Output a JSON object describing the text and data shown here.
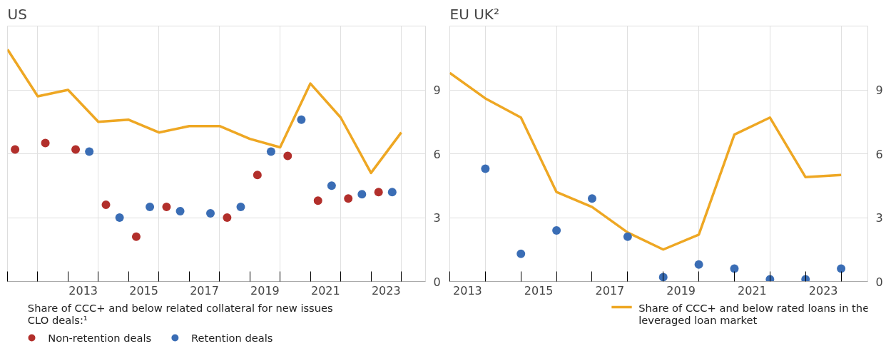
{
  "chart_data": [
    {
      "type": "line",
      "title": "US",
      "legend_title": "Share of CCC+ and below related collateral for new issues CLO deals:¹",
      "legend": "bottom",
      "grid": true,
      "marker": "none",
      "xlim": [
        2011,
        2024.8
      ],
      "ylim": [
        0,
        12
      ],
      "yticks": [
        0,
        3,
        6,
        9
      ],
      "xticks": [
        {
          "value": 2011,
          "label": null
        },
        {
          "value": 2012,
          "label": null
        },
        {
          "value": 2013,
          "label": null
        },
        {
          "value": 2014,
          "label": null
        },
        {
          "value": 2015,
          "label": null
        },
        {
          "value": 2016,
          "label": null
        },
        {
          "value": 2017,
          "label": null
        },
        {
          "value": 2018,
          "label": null
        },
        {
          "value": 2019,
          "label": null
        },
        {
          "value": 2020,
          "label": null
        },
        {
          "value": 2021,
          "label": null
        },
        {
          "value": 2022,
          "label": null
        },
        {
          "value": 2023,
          "label": null
        },
        {
          "value": 2024,
          "label": null
        },
        {
          "value": 2013.5,
          "label": "2013"
        },
        {
          "value": 2015.5,
          "label": "2015"
        },
        {
          "value": 2017.5,
          "label": "2017"
        },
        {
          "value": 2019.5,
          "label": "2019"
        },
        {
          "value": 2021.5,
          "label": "2021"
        },
        {
          "value": 2023.5,
          "label": "2023"
        }
      ],
      "series": [
        {
          "color": "#eea723",
          "x": [
            2011,
            2012,
            2013,
            2014,
            2015,
            2016,
            2017,
            2018,
            2019,
            2020,
            2021,
            2022,
            2023,
            2024
          ],
          "values": [
            10.9,
            8.7,
            9.0,
            7.5,
            7.6,
            7.0,
            7.3,
            7.3,
            6.7,
            6.3,
            9.3,
            7.7,
            5.1,
            7.0
          ]
        },
        {
          "type": "scatter",
          "name": "Non-retention deals",
          "color": "#b22f2b",
          "marker": "circle",
          "x": [
            2011.25,
            2012.25,
            2013.25,
            2014.25,
            2015.25,
            2016.25,
            2018.25,
            2019.25,
            2020.25,
            2021.25,
            2022.25,
            2023.25
          ],
          "values": [
            6.2,
            6.5,
            6.2,
            3.6,
            2.1,
            3.5,
            3.0,
            5.0,
            5.9,
            3.8,
            3.9,
            4.2
          ]
        },
        {
          "type": "scatter",
          "name": "Retention deals",
          "color": "#3a6db5",
          "marker": "circle",
          "x": [
            2013.7,
            2014.7,
            2015.7,
            2016.7,
            2017.7,
            2018.7,
            2019.7,
            2020.7,
            2021.7,
            2022.7,
            2023.7
          ],
          "values": [
            6.1,
            3.0,
            3.5,
            3.3,
            3.2,
            3.5,
            6.1,
            7.6,
            4.5,
            4.1,
            4.2
          ]
        }
      ]
    },
    {
      "type": "line",
      "title": "EU UK²",
      "legend": "bottom",
      "grid": true,
      "marker": "none",
      "xlim": [
        2013,
        2024.75
      ],
      "ylim": [
        0,
        12
      ],
      "yticks": [
        0,
        3,
        6,
        9
      ],
      "xticks": [
        {
          "value": 2013,
          "label": null
        },
        {
          "value": 2014,
          "label": null
        },
        {
          "value": 2015,
          "label": null
        },
        {
          "value": 2016,
          "label": null
        },
        {
          "value": 2017,
          "label": null
        },
        {
          "value": 2018,
          "label": null
        },
        {
          "value": 2019,
          "label": null
        },
        {
          "value": 2020,
          "label": null
        },
        {
          "value": 2021,
          "label": null
        },
        {
          "value": 2022,
          "label": null
        },
        {
          "value": 2023,
          "label": null
        },
        {
          "value": 2024,
          "label": null
        },
        {
          "value": 2013.5,
          "label": "2013"
        },
        {
          "value": 2015.5,
          "label": "2015"
        },
        {
          "value": 2017.5,
          "label": "2017"
        },
        {
          "value": 2019.5,
          "label": "2019"
        },
        {
          "value": 2021.5,
          "label": "2021"
        },
        {
          "value": 2023.5,
          "label": "2023"
        }
      ],
      "series": [
        {
          "name": "Share of CCC+ and below rated loans in the leveraged loan market",
          "color": "#eea723",
          "x": [
            2013,
            2014,
            2015,
            2016,
            2017,
            2018,
            2019,
            2020,
            2021,
            2022,
            2023,
            2024
          ],
          "values": [
            9.8,
            8.6,
            7.7,
            4.2,
            3.5,
            2.3,
            1.5,
            2.2,
            6.9,
            7.7,
            4.9,
            5.0
          ]
        },
        {
          "type": "scatter",
          "color": "#3a6db5",
          "marker": "circle",
          "x": [
            2014,
            2015,
            2016,
            2017,
            2018,
            2019,
            2020,
            2021,
            2022,
            2023,
            2024
          ],
          "values": [
            5.3,
            1.3,
            2.4,
            3.9,
            2.1,
            0.2,
            0.8,
            0.6,
            0.1,
            0.1,
            0.6
          ]
        }
      ]
    }
  ]
}
